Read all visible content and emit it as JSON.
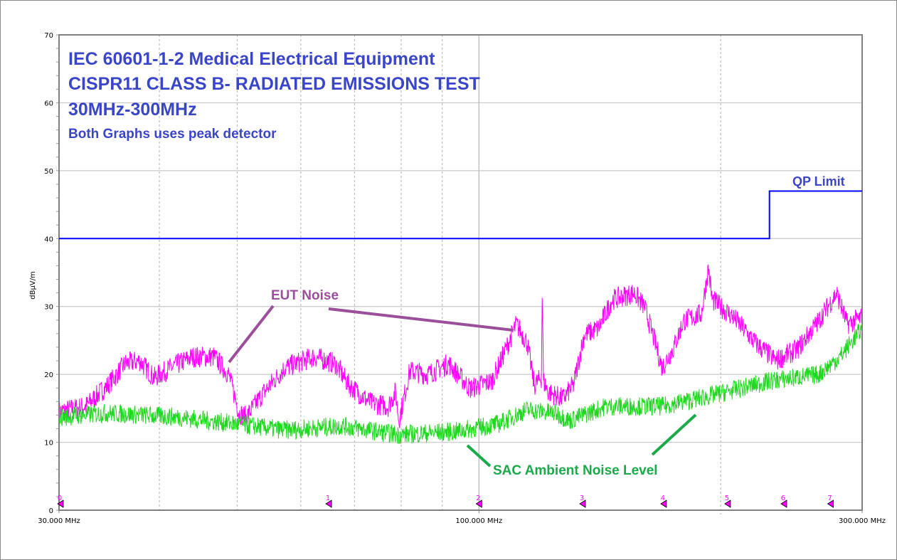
{
  "chart_data": {
    "type": "line",
    "title_lines": [
      "IEC 60601-1-2 Medical Electrical Equipment",
      "CISPR11 CLASS B- RADIATED EMISSIONS TEST",
      "30MHz-300MHz"
    ],
    "subtitle": "Both Graphs uses peak detector",
    "ylabel": "dBµV/m",
    "xlabel": "",
    "x_scale": "log",
    "xlim": [
      30,
      300
    ],
    "ylim": [
      0,
      70
    ],
    "yticks": [
      0,
      10,
      20,
      30,
      40,
      50,
      60,
      70
    ],
    "xtick_labels": [
      {
        "value": 30,
        "label": "30.000 MHz"
      },
      {
        "value": 100,
        "label": "100.000 MHz"
      },
      {
        "value": 300,
        "label": "300.000 MHz"
      }
    ],
    "grid": true,
    "series": [
      {
        "name": "EUT Noise",
        "color": "#ff00ff",
        "x": [
          30,
          32.4,
          34.5,
          36.3,
          37.8,
          39.4,
          41.4,
          44.0,
          46.8,
          48.8,
          50.3,
          51.3,
          54.0,
          57.4,
          62.3,
          66.2,
          68.9,
          73.3,
          77.1,
          78.7,
          79.5,
          82.0,
          86.3,
          91.7,
          97.5,
          103.7,
          108,
          111.3,
          114.8,
          117.2,
          119.6,
          119.9,
          120.3,
          122,
          127.2,
          131.1,
          135.2,
          140.8,
          146.6,
          155.9,
          160.7,
          165.7,
          169.1,
          174.4,
          179.9,
          189.2,
          193.1,
          195.1,
          207.5,
          220.5,
          234.4,
          249.2,
          264.9,
          278.8,
          287.4,
          300
        ],
        "y": [
          14.5,
          15.3,
          18.4,
          21.6,
          22.0,
          19.5,
          21.0,
          22.6,
          22.6,
          20.0,
          14.3,
          13.7,
          17.4,
          21.0,
          22.6,
          21.6,
          18.4,
          15.8,
          15.3,
          17.4,
          13.2,
          20.5,
          20.0,
          21.6,
          17.9,
          19.0,
          23.7,
          27.4,
          24.7,
          18.4,
          19.5,
          33.0,
          19.0,
          17.4,
          16.4,
          18.4,
          25.8,
          26.8,
          31.0,
          32.0,
          30.0,
          24.7,
          21.0,
          23.7,
          27.9,
          28.9,
          35.7,
          31.0,
          28.4,
          24.7,
          22.0,
          23.7,
          27.9,
          32.0,
          27.4,
          28.4
        ]
      },
      {
        "name": "SAC Ambient Noise Level",
        "color": "#1fd81f",
        "x": [
          30,
          34.5,
          42.3,
          49.8,
          57.4,
          67.6,
          79.5,
          93.6,
          105.8,
          114.8,
          124.6,
          129.7,
          143.7,
          169.1,
          195.1,
          229.7,
          264.9,
          281.6,
          300
        ],
        "y": [
          13.7,
          14.3,
          13.7,
          12.7,
          11.8,
          12.4,
          11.1,
          11.6,
          12.7,
          14.8,
          14.3,
          13.2,
          15.3,
          15.3,
          16.9,
          19.0,
          20.0,
          22.6,
          26.8
        ]
      },
      {
        "name": "QP Limit",
        "color": "#0000ff",
        "x": [
          30,
          230,
          230,
          300
        ],
        "y": [
          40,
          40,
          47,
          47
        ]
      }
    ],
    "markers": [
      {
        "label": "0",
        "x": 30
      },
      {
        "label": "1",
        "x": 65
      },
      {
        "label": "2",
        "x": 100
      },
      {
        "label": "3",
        "x": 134.6
      },
      {
        "label": "4",
        "x": 169.8
      },
      {
        "label": "5",
        "x": 204
      },
      {
        "label": "6",
        "x": 239.7
      },
      {
        "label": "7",
        "x": 274
      }
    ],
    "annotations": {
      "eut": {
        "text": "EUT Noise",
        "color": "#9b4f9b"
      },
      "sac": {
        "text": "SAC Ambient Noise Level",
        "color": "#1aaa4a"
      },
      "limit": {
        "text": "QP Limit",
        "color": "#3a45c8"
      }
    }
  }
}
